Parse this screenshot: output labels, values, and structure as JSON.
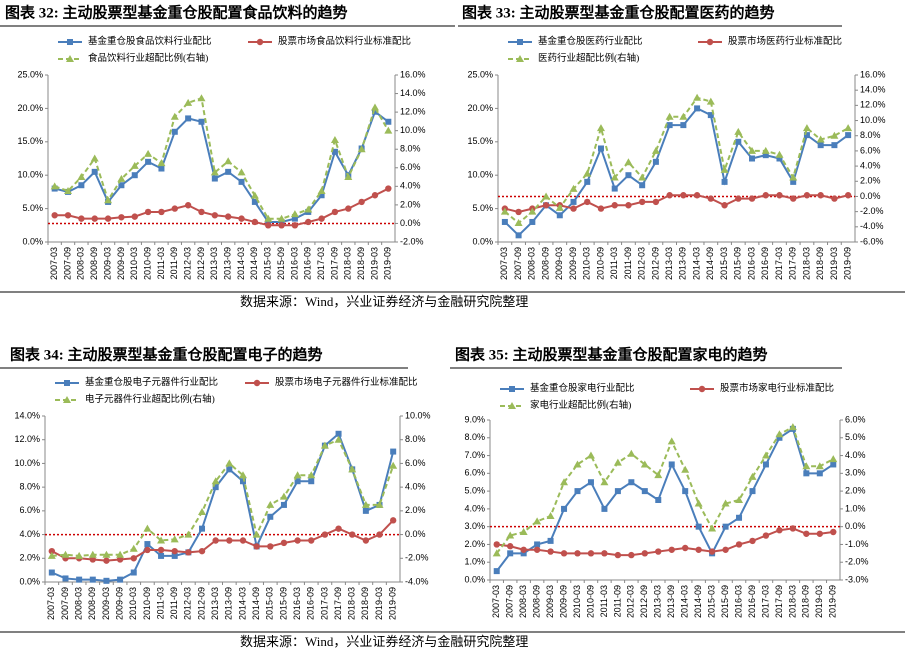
{
  "chart_data": [
    {
      "type": "line",
      "title": "图表 32: 主动股票型基金重仓股配置食品饮料的趋势",
      "categories": [
        "2007-03",
        "2007-09",
        "2008-03",
        "2008-09",
        "2009-03",
        "2009-09",
        "2010-03",
        "2010-09",
        "2011-03",
        "2011-09",
        "2012-03",
        "2012-09",
        "2013-03",
        "2013-09",
        "2014-03",
        "2014-09",
        "2015-03",
        "2015-09",
        "2016-03",
        "2016-09",
        "2017-03",
        "2017-09",
        "2018-03",
        "2018-09",
        "2019-03",
        "2019-09"
      ],
      "series": [
        {
          "name": "基金重仓股食品饮料行业配比",
          "color": "#4a7ebb",
          "marker": "square",
          "axis": "y",
          "values": [
            8,
            7.5,
            8.5,
            10.5,
            6,
            8.5,
            10,
            12,
            11,
            16.5,
            18.5,
            18,
            9.5,
            10.5,
            9,
            6,
            3,
            3,
            3.5,
            4.5,
            7,
            13.5,
            10,
            14,
            19.5,
            18
          ]
        },
        {
          "name": "股票市场食品饮料行业标准配比",
          "color": "#c0504d",
          "marker": "circle",
          "axis": "y",
          "values": [
            4,
            4,
            3.5,
            3.5,
            3.5,
            3.7,
            3.8,
            4.5,
            4.5,
            5,
            5.5,
            4.5,
            4,
            3.8,
            3.5,
            3,
            2.5,
            2.5,
            2.5,
            3,
            3.5,
            4.5,
            5,
            6,
            7,
            8
          ]
        },
        {
          "name": "食品饮料行业超配比例(右轴)",
          "color": "#9bbb59",
          "marker": "triangle",
          "dash": true,
          "axis": "y2",
          "values": [
            4,
            3.5,
            5,
            7,
            2.5,
            4.8,
            6.2,
            7.5,
            6.5,
            11.5,
            13,
            13.5,
            5.5,
            6.7,
            5.5,
            3,
            0.5,
            0.5,
            1,
            1.5,
            3.5,
            9,
            5,
            8,
            12.5,
            10
          ]
        }
      ],
      "ylim": [
        0,
        25
      ],
      "yticks": [
        {
          "value": 0,
          "label": "0.0%"
        },
        {
          "value": 5,
          "label": "5.0%"
        },
        {
          "value": 10,
          "label": "10.0%"
        },
        {
          "value": 15,
          "label": "15.0%"
        },
        {
          "value": 20,
          "label": "20.0%"
        },
        {
          "value": 25,
          "label": "25.0%"
        }
      ],
      "y2lim": [
        -2,
        16
      ],
      "y2ticks": [
        {
          "value": -2,
          "label": "-2.0%"
        },
        {
          "value": 0,
          "label": "0.0%"
        },
        {
          "value": 2,
          "label": "2.0%"
        },
        {
          "value": 4,
          "label": "4.0%"
        },
        {
          "value": 6,
          "label": "6.0%"
        },
        {
          "value": 8,
          "label": "8.0%"
        },
        {
          "value": 10,
          "label": "10.0%"
        },
        {
          "value": 12,
          "label": "12.0%"
        },
        {
          "value": 14,
          "label": "14.0%"
        },
        {
          "value": 16,
          "label": "16.0%"
        }
      ],
      "reference_line": {
        "axis": "y2",
        "value": 0,
        "color": "#cc0000"
      }
    },
    {
      "type": "line",
      "title": "图表 33: 主动股票型基金重仓股配置医药的趋势",
      "categories": [
        "2007-03",
        "2007-09",
        "2008-03",
        "2008-09",
        "2009-03",
        "2009-09",
        "2010-03",
        "2010-09",
        "2011-03",
        "2011-09",
        "2012-03",
        "2012-09",
        "2013-03",
        "2013-09",
        "2014-03",
        "2014-09",
        "2015-03",
        "2015-09",
        "2016-03",
        "2016-09",
        "2017-03",
        "2017-09",
        "2018-03",
        "2018-09",
        "2019-03",
        "2019-09"
      ],
      "series": [
        {
          "name": "基金重仓股医药行业配比",
          "color": "#4a7ebb",
          "marker": "square",
          "axis": "y",
          "values": [
            3,
            1,
            3,
            5.5,
            4,
            6,
            9,
            14,
            8,
            10,
            8.5,
            12,
            17.5,
            17.5,
            20,
            19,
            9,
            15,
            12.5,
            13,
            12.5,
            9,
            16,
            14.5,
            14.5,
            16
          ]
        },
        {
          "name": "股票市场医药行业标准配比",
          "color": "#c0504d",
          "marker": "circle",
          "axis": "y",
          "values": [
            5,
            4.5,
            5,
            5.5,
            5.5,
            5,
            6,
            5,
            5.5,
            5.5,
            6,
            6,
            7,
            7,
            7,
            6.5,
            5.5,
            6.5,
            6.5,
            7,
            7,
            6.5,
            7,
            7,
            6.5,
            7
          ]
        },
        {
          "name": "医药行业超配比例(右轴)",
          "color": "#9bbb59",
          "marker": "triangle",
          "dash": true,
          "axis": "y2",
          "values": [
            -2,
            -3.5,
            -2,
            0,
            -1.5,
            1,
            3,
            9,
            2.5,
            4.5,
            2.5,
            6,
            10.5,
            10.5,
            13,
            12.5,
            3.5,
            8.5,
            6,
            6,
            5.5,
            2.5,
            9,
            7.5,
            8,
            9
          ]
        }
      ],
      "ylim": [
        0,
        25
      ],
      "yticks": [
        {
          "value": 0,
          "label": "0.0%"
        },
        {
          "value": 5,
          "label": "5.0%"
        },
        {
          "value": 10,
          "label": "10.0%"
        },
        {
          "value": 15,
          "label": "15.0%"
        },
        {
          "value": 20,
          "label": "20.0%"
        },
        {
          "value": 25,
          "label": "25.0%"
        }
      ],
      "y2lim": [
        -6,
        16
      ],
      "y2ticks": [
        {
          "value": -6,
          "label": "-6.0%"
        },
        {
          "value": -4,
          "label": "-4.0%"
        },
        {
          "value": -2,
          "label": "-2.0%"
        },
        {
          "value": 0,
          "label": "0.0%"
        },
        {
          "value": 2,
          "label": "2.0%"
        },
        {
          "value": 4,
          "label": "4.0%"
        },
        {
          "value": 6,
          "label": "6.0%"
        },
        {
          "value": 8,
          "label": "8.0%"
        },
        {
          "value": 10,
          "label": "10.0%"
        },
        {
          "value": 12,
          "label": "12.0%"
        },
        {
          "value": 14,
          "label": "14.0%"
        },
        {
          "value": 16,
          "label": "16.0%"
        }
      ],
      "reference_line": {
        "axis": "y2",
        "value": 0,
        "color": "#cc0000"
      }
    },
    {
      "type": "line",
      "title": "图表 34: 主动股票型基金重仓股配置电子的趋势",
      "categories": [
        "2007-03",
        "2007-09",
        "2008-03",
        "2008-09",
        "2009-03",
        "2009-09",
        "2010-03",
        "2010-09",
        "2011-03",
        "2011-09",
        "2012-03",
        "2012-09",
        "2013-03",
        "2013-09",
        "2014-03",
        "2014-09",
        "2015-03",
        "2015-09",
        "2016-03",
        "2016-09",
        "2017-03",
        "2017-09",
        "2018-03",
        "2018-09",
        "2019-03",
        "2019-09"
      ],
      "series": [
        {
          "name": "基金重仓股电子元器件行业配比",
          "color": "#4a7ebb",
          "marker": "square",
          "axis": "y",
          "values": [
            0.8,
            0.3,
            0.2,
            0.2,
            0.1,
            0.2,
            0.8,
            3.2,
            2.2,
            2.2,
            2.5,
            4.5,
            8,
            9.5,
            8.5,
            3,
            5.5,
            6.5,
            8.5,
            8.5,
            11.5,
            12.5,
            9.5,
            6,
            6.5,
            11
          ]
        },
        {
          "name": "股票市场电子元器件行业标准配比",
          "color": "#c0504d",
          "marker": "circle",
          "axis": "y",
          "values": [
            2.6,
            2,
            2,
            1.9,
            1.8,
            1.9,
            2,
            2.7,
            2.7,
            2.6,
            2.5,
            2.6,
            3.5,
            3.5,
            3.5,
            3,
            3,
            3.3,
            3.5,
            3.5,
            4,
            4.5,
            4,
            3.5,
            4,
            5.2
          ]
        },
        {
          "name": "电子元器件行业超配比例(右轴)",
          "color": "#9bbb59",
          "marker": "triangle",
          "dash": true,
          "axis": "y2",
          "values": [
            -1.8,
            -1.7,
            -1.8,
            -1.7,
            -1.7,
            -1.7,
            -1.2,
            0.5,
            -0.5,
            -0.4,
            0,
            1.9,
            4.5,
            6,
            5,
            0,
            2.5,
            3.2,
            5,
            5,
            7.5,
            8,
            5.5,
            2.5,
            2.5,
            5.8
          ]
        }
      ],
      "ylim": [
        0,
        14
      ],
      "yticks": [
        {
          "value": 0,
          "label": "0.0%"
        },
        {
          "value": 2,
          "label": "2.0%"
        },
        {
          "value": 4,
          "label": "4.0%"
        },
        {
          "value": 6,
          "label": "6.0%"
        },
        {
          "value": 8,
          "label": "8.0%"
        },
        {
          "value": 10,
          "label": "10.0%"
        },
        {
          "value": 12,
          "label": "12.0%"
        },
        {
          "value": 14,
          "label": "14.0%"
        }
      ],
      "y2lim": [
        -4,
        10
      ],
      "y2ticks": [
        {
          "value": -4,
          "label": "-4.0%"
        },
        {
          "value": -2,
          "label": "-2.0%"
        },
        {
          "value": 0,
          "label": "0.0%"
        },
        {
          "value": 2,
          "label": "2.0%"
        },
        {
          "value": 4,
          "label": "4.0%"
        },
        {
          "value": 6,
          "label": "6.0%"
        },
        {
          "value": 8,
          "label": "8.0%"
        },
        {
          "value": 10,
          "label": "10.0%"
        }
      ],
      "reference_line": {
        "axis": "y2",
        "value": 0,
        "color": "#cc0000"
      }
    },
    {
      "type": "line",
      "title": "图表 35: 主动股票型基金重仓股配置家电的趋势",
      "categories": [
        "2007-03",
        "2007-09",
        "2008-03",
        "2008-09",
        "2009-03",
        "2009-09",
        "2010-03",
        "2010-09",
        "2011-03",
        "2011-09",
        "2012-03",
        "2012-09",
        "2013-03",
        "2013-09",
        "2014-03",
        "2014-09",
        "2015-03",
        "2015-09",
        "2016-03",
        "2016-09",
        "2017-03",
        "2017-09",
        "2018-03",
        "2018-09",
        "2019-03",
        "2019-09"
      ],
      "series": [
        {
          "name": "基金重仓股家电行业配比",
          "color": "#4a7ebb",
          "marker": "square",
          "axis": "y",
          "values": [
            0.5,
            1.5,
            1.5,
            2,
            2.2,
            4,
            5,
            5.5,
            4,
            5,
            5.5,
            5,
            4.5,
            6.5,
            5,
            3,
            1.5,
            3,
            3.5,
            5,
            6.5,
            8,
            8.5,
            6,
            6,
            6.5
          ]
        },
        {
          "name": "股票市场家电行业标准配比",
          "color": "#c0504d",
          "marker": "circle",
          "axis": "y",
          "values": [
            2,
            1.9,
            1.7,
            1.7,
            1.6,
            1.5,
            1.5,
            1.5,
            1.5,
            1.4,
            1.4,
            1.5,
            1.6,
            1.7,
            1.8,
            1.7,
            1.6,
            1.7,
            2,
            2.2,
            2.5,
            2.8,
            2.9,
            2.6,
            2.6,
            2.7
          ]
        },
        {
          "name": "家电行业超配比例(右轴)",
          "color": "#9bbb59",
          "marker": "triangle",
          "dash": true,
          "axis": "y2",
          "values": [
            -1.5,
            -0.5,
            -0.3,
            0.3,
            0.6,
            2.5,
            3.5,
            4,
            2.5,
            3.6,
            4.1,
            3.5,
            2.9,
            4.8,
            3.2,
            1.3,
            -0.1,
            1.3,
            1.5,
            2.8,
            4,
            5.2,
            5.6,
            3.4,
            3.4,
            3.8
          ]
        }
      ],
      "ylim": [
        0,
        9
      ],
      "yticks": [
        {
          "value": 0,
          "label": "0.0%"
        },
        {
          "value": 1,
          "label": "1.0%"
        },
        {
          "value": 2,
          "label": "2.0%"
        },
        {
          "value": 3,
          "label": "3.0%"
        },
        {
          "value": 4,
          "label": "4.0%"
        },
        {
          "value": 5,
          "label": "5.0%"
        },
        {
          "value": 6,
          "label": "6.0%"
        },
        {
          "value": 7,
          "label": "7.0%"
        },
        {
          "value": 8,
          "label": "8.0%"
        },
        {
          "value": 9,
          "label": "9.0%"
        }
      ],
      "y2lim": [
        -3,
        6
      ],
      "y2ticks": [
        {
          "value": -3,
          "label": "-3.0%"
        },
        {
          "value": -2,
          "label": "-2.0%"
        },
        {
          "value": -1,
          "label": "-1.0%"
        },
        {
          "value": 0,
          "label": "0.0%"
        },
        {
          "value": 1,
          "label": "1.0%"
        },
        {
          "value": 2,
          "label": "2.0%"
        },
        {
          "value": 3,
          "label": "3.0%"
        },
        {
          "value": 4,
          "label": "4.0%"
        },
        {
          "value": 5,
          "label": "5.0%"
        },
        {
          "value": 6,
          "label": "6.0%"
        }
      ],
      "reference_line": {
        "axis": "y2",
        "value": 0,
        "color": "#cc0000"
      }
    }
  ],
  "sources": [
    "数据来源：Wind，兴业证券经济与金融研究院整理",
    "数据来源：Wind，兴业证券经济与金融研究院整理"
  ]
}
